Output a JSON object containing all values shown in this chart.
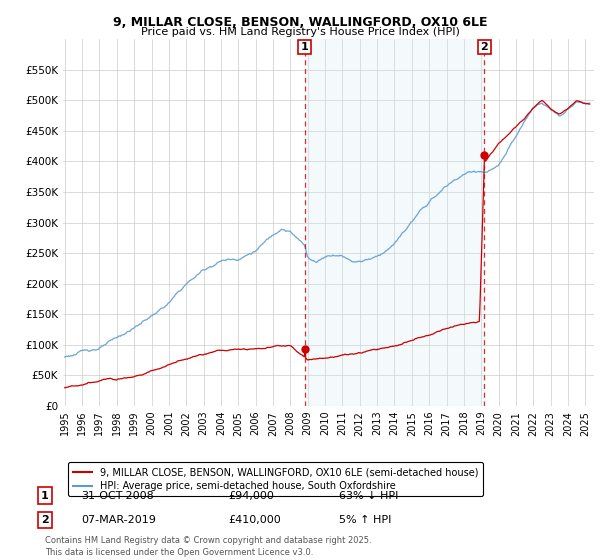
{
  "title_line1": "9, MILLAR CLOSE, BENSON, WALLINGFORD, OX10 6LE",
  "title_line2": "Price paid vs. HM Land Registry's House Price Index (HPI)",
  "ylim": [
    0,
    600000
  ],
  "yticks": [
    0,
    50000,
    100000,
    150000,
    200000,
    250000,
    300000,
    350000,
    400000,
    450000,
    500000,
    550000
  ],
  "xlim_start": 1994.9,
  "xlim_end": 2025.5,
  "legend_entry1": "9, MILLAR CLOSE, BENSON, WALLINGFORD, OX10 6LE (semi-detached house)",
  "legend_entry2": "HPI: Average price, semi-detached house, South Oxfordshire",
  "transaction1_date": "31-OCT-2008",
  "transaction1_price": "£94,000",
  "transaction1_hpi": "63% ↓ HPI",
  "transaction2_date": "07-MAR-2019",
  "transaction2_price": "£410,000",
  "transaction2_hpi": "5% ↑ HPI",
  "footnote": "Contains HM Land Registry data © Crown copyright and database right 2025.\nThis data is licensed under the Open Government Licence v3.0.",
  "hpi_color": "#5b9bd5",
  "hpi_fill_color": "#d6e8f7",
  "price_color": "#cc0000",
  "vline_color": "#cc0000",
  "transaction1_x": 2008.83,
  "transaction1_y": 94000,
  "transaction2_x": 2019.18,
  "transaction2_y": 410000,
  "background_color": "#ffffff",
  "grid_color": "#cccccc"
}
